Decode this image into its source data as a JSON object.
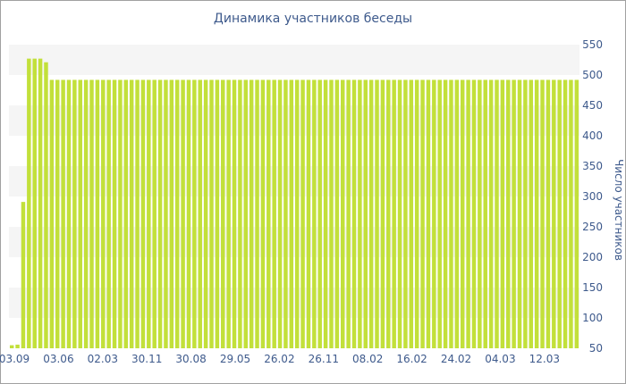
{
  "chart_data": {
    "type": "bar",
    "title": "Динамика участников беседы",
    "ylabel": "Число участников",
    "xlabel": "",
    "ylim": [
      50,
      550
    ],
    "y_ticks": [
      50,
      100,
      150,
      200,
      250,
      300,
      350,
      400,
      450,
      500,
      550
    ],
    "x_tick_labels": [
      "03.09",
      "03.06",
      "02.03",
      "30.11",
      "30.08",
      "29.05",
      "26.02",
      "26.11",
      "08.02",
      "16.02",
      "24.02",
      "04.03",
      "12.03"
    ],
    "y_axis_position": "right",
    "grid": "alternating horizontal bands",
    "bar_color": "#c2e03a",
    "values": [
      55,
      56,
      291,
      527,
      527,
      527,
      521,
      492,
      492,
      492,
      492,
      492,
      492,
      492,
      492,
      492,
      492,
      492,
      492,
      492,
      492,
      492,
      492,
      492,
      492,
      492,
      492,
      492,
      492,
      492,
      492,
      492,
      492,
      492,
      492,
      492,
      492,
      492,
      492,
      492,
      492,
      492,
      492,
      492,
      492,
      492,
      492,
      492,
      492,
      492,
      492,
      492,
      492,
      492,
      492,
      492,
      492,
      492,
      492,
      492,
      492,
      492,
      492,
      492,
      492,
      492,
      492,
      492,
      492,
      492,
      492,
      492,
      492,
      492,
      492,
      492,
      492,
      492,
      492,
      492,
      492,
      492,
      492,
      492,
      492,
      492,
      492,
      492,
      492,
      492,
      492,
      492,
      492,
      492,
      492,
      492,
      492,
      492,
      492,
      492
    ]
  }
}
